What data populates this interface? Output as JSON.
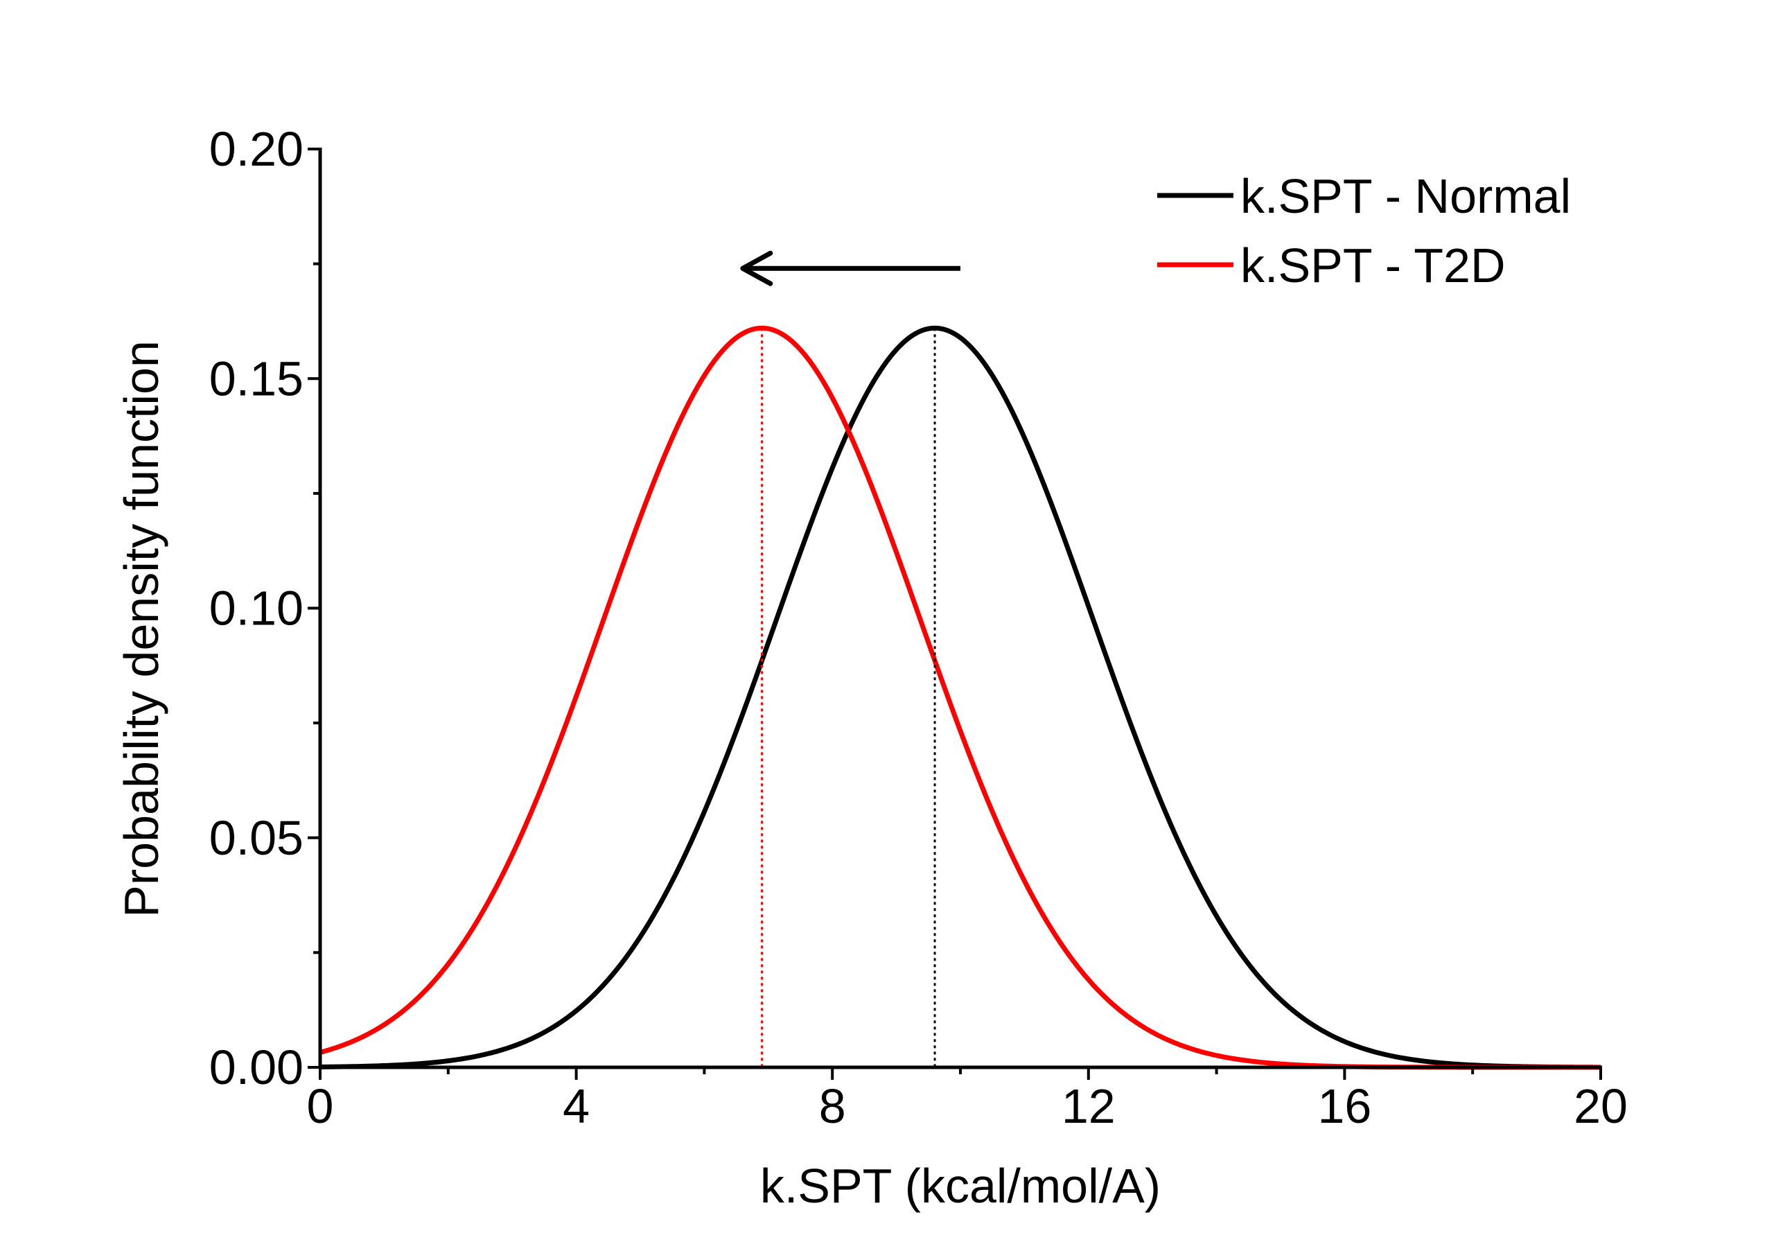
{
  "chart_data": {
    "type": "line",
    "title": "",
    "xlabel": "k.SPT (kcal/mol/A)",
    "ylabel": "Probability density function",
    "xlim": [
      0,
      20
    ],
    "ylim": [
      0,
      0.2
    ],
    "x_ticks": [
      0,
      4,
      8,
      12,
      16,
      20
    ],
    "x_tick_labels": [
      "0",
      "4",
      "8",
      "12",
      "16",
      "20"
    ],
    "y_ticks": [
      0,
      0.05,
      0.1,
      0.15,
      0.2
    ],
    "y_tick_labels": [
      "0.00",
      "0.05",
      "0.10",
      "0.15",
      "0.20"
    ],
    "x_minor_ticks": [
      2,
      6,
      10,
      14,
      18
    ],
    "y_minor_ticks": [
      0.025,
      0.075,
      0.125,
      0.175
    ],
    "grid": false,
    "legend_position": "top-right",
    "series": [
      {
        "name": "k.SPT - Normal",
        "color": "#000000",
        "distribution": "normal",
        "mean": 9.6,
        "sd": 2.47,
        "peak": 0.161
      },
      {
        "name": "k.SPT - T2D",
        "color": "#ff0000",
        "distribution": "normal",
        "mean": 6.9,
        "sd": 2.47,
        "peak": 0.161
      }
    ],
    "mean_markers": [
      {
        "x": 9.6,
        "y": 0.161,
        "color": "#000000",
        "style": "dotted"
      },
      {
        "x": 6.9,
        "y": 0.161,
        "color": "#ff0000",
        "style": "dotted"
      }
    ],
    "annotations": [
      {
        "type": "arrow",
        "direction": "left",
        "from": [
          10,
          0.174
        ],
        "to": [
          6.6,
          0.174
        ],
        "color": "#000000"
      }
    ]
  }
}
